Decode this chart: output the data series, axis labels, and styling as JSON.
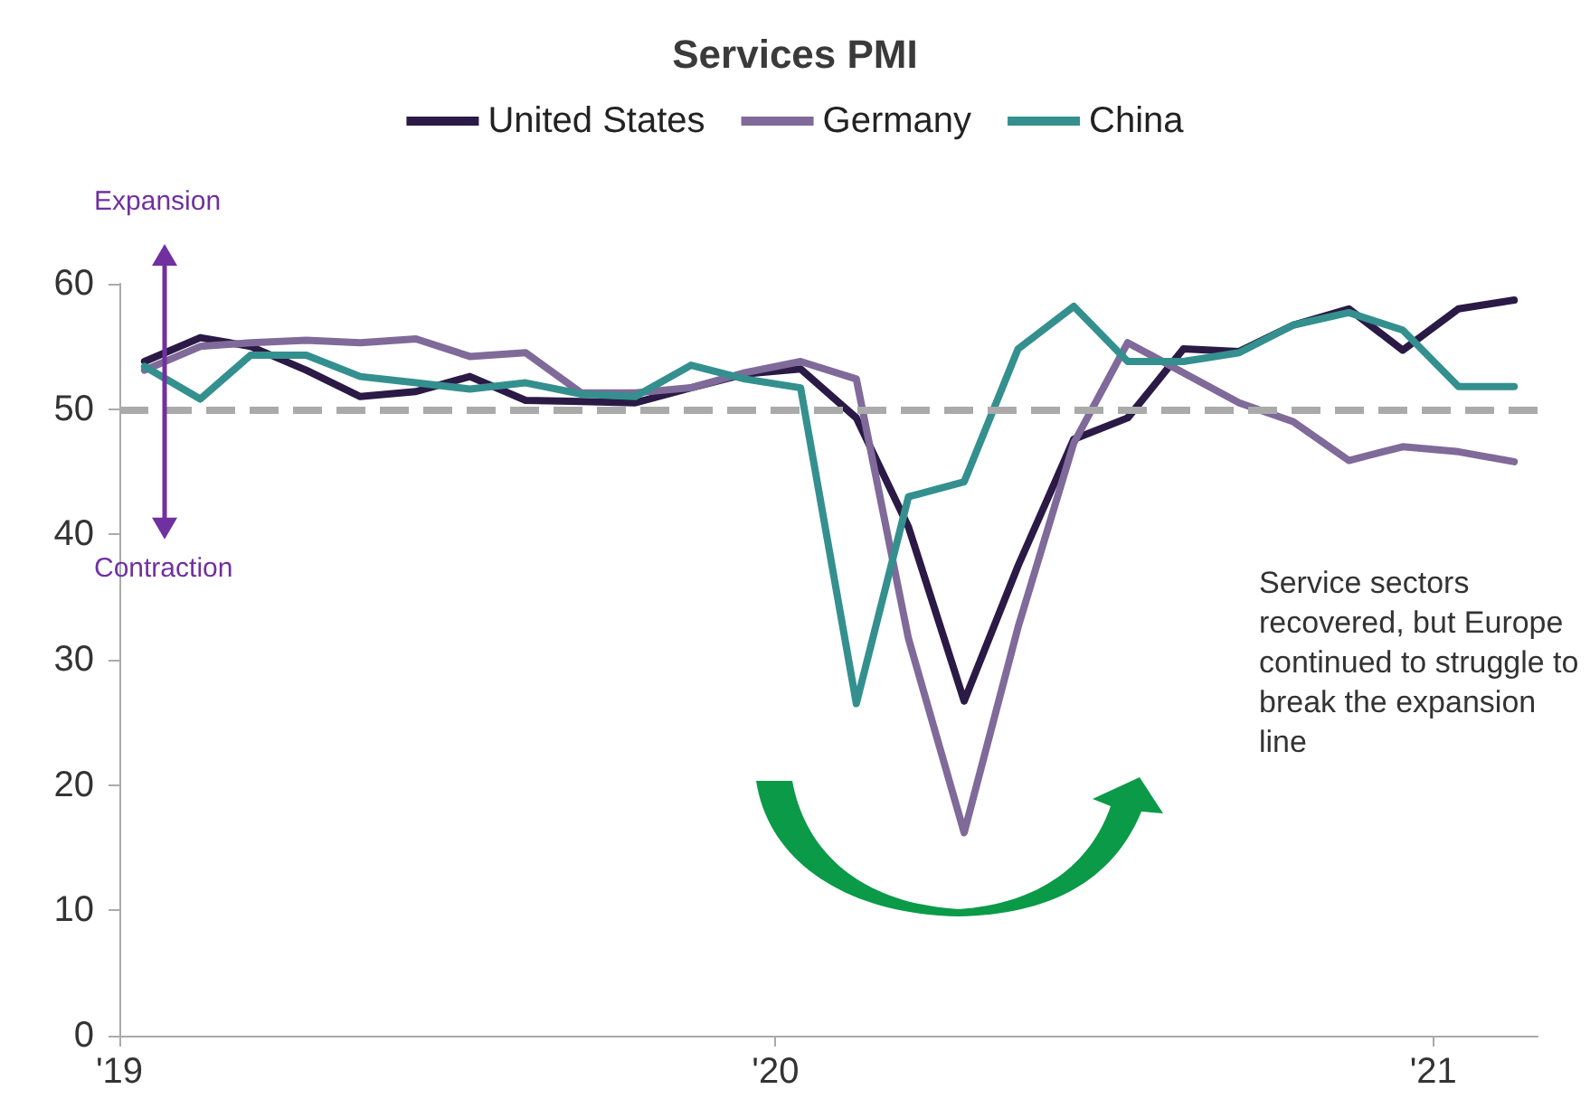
{
  "chart_data": {
    "type": "line",
    "title": "Services PMI",
    "x": [
      "2019-01-15",
      "2019-02-15",
      "2019-03-15",
      "2019-04-15",
      "2019-05-15",
      "2019-06-15",
      "2019-07-15",
      "2019-08-15",
      "2019-09-15",
      "2019-10-15",
      "2019-11-15",
      "2019-12-15",
      "2020-01-15",
      "2020-02-15",
      "2020-03-15",
      "2020-04-15",
      "2020-05-15",
      "2020-06-15",
      "2020-07-15",
      "2020-08-15",
      "2020-09-15",
      "2020-10-15",
      "2020-11-15",
      "2020-12-15",
      "2021-01-15",
      "2021-02-15"
    ],
    "series": [
      {
        "name": "United States",
        "color": "#2a1a45",
        "values": [
          53.8,
          55.7,
          55.0,
          53.1,
          51.0,
          51.4,
          52.6,
          50.7,
          50.6,
          50.5,
          51.7,
          52.8,
          53.2,
          49.3,
          40.6,
          26.7,
          37.5,
          47.6,
          49.3,
          54.8,
          54.6,
          56.7,
          58.0,
          54.7,
          58.0,
          58.7
        ]
      },
      {
        "name": "Germany",
        "color": "#7f6a9a",
        "values": [
          53.1,
          55.0,
          55.3,
          55.5,
          55.3,
          55.6,
          54.2,
          54.5,
          51.3,
          51.3,
          51.7,
          52.9,
          53.8,
          52.4,
          31.7,
          16.2,
          32.6,
          47.3,
          55.3,
          52.9,
          50.5,
          49.0,
          45.9,
          47.0,
          46.6,
          45.8
        ]
      },
      {
        "name": "China",
        "color": "#34908e",
        "values": [
          53.4,
          50.8,
          54.3,
          54.3,
          52.6,
          52.1,
          51.6,
          52.1,
          51.2,
          51.0,
          53.5,
          52.4,
          51.7,
          26.5,
          43.0,
          44.2,
          54.8,
          58.2,
          53.8,
          53.8,
          54.5,
          56.7,
          57.7,
          56.3,
          51.8,
          51.8
        ]
      }
    ],
    "xlim": [
      "2019-01-01",
      "2021-02-28"
    ],
    "xticks": [
      {
        "value": "2019-01-01",
        "label": "'19"
      },
      {
        "value": "2020-01-01",
        "label": "'20"
      },
      {
        "value": "2021-01-01",
        "label": "'21"
      }
    ],
    "ylim": [
      0,
      60
    ],
    "yticks": [
      0,
      10,
      20,
      30,
      40,
      50,
      60
    ],
    "ref_lines": [
      {
        "axis": "y",
        "value": 50,
        "color": "#aaaaaa",
        "line_style": "dashed"
      }
    ],
    "annotations": [
      "Expansion",
      "Contraction",
      "Service sectors recovered, but Europe continued to struggle to break the expansion line"
    ],
    "grid": false,
    "legend": "top",
    "marker": "none",
    "line_style": "solid"
  }
}
